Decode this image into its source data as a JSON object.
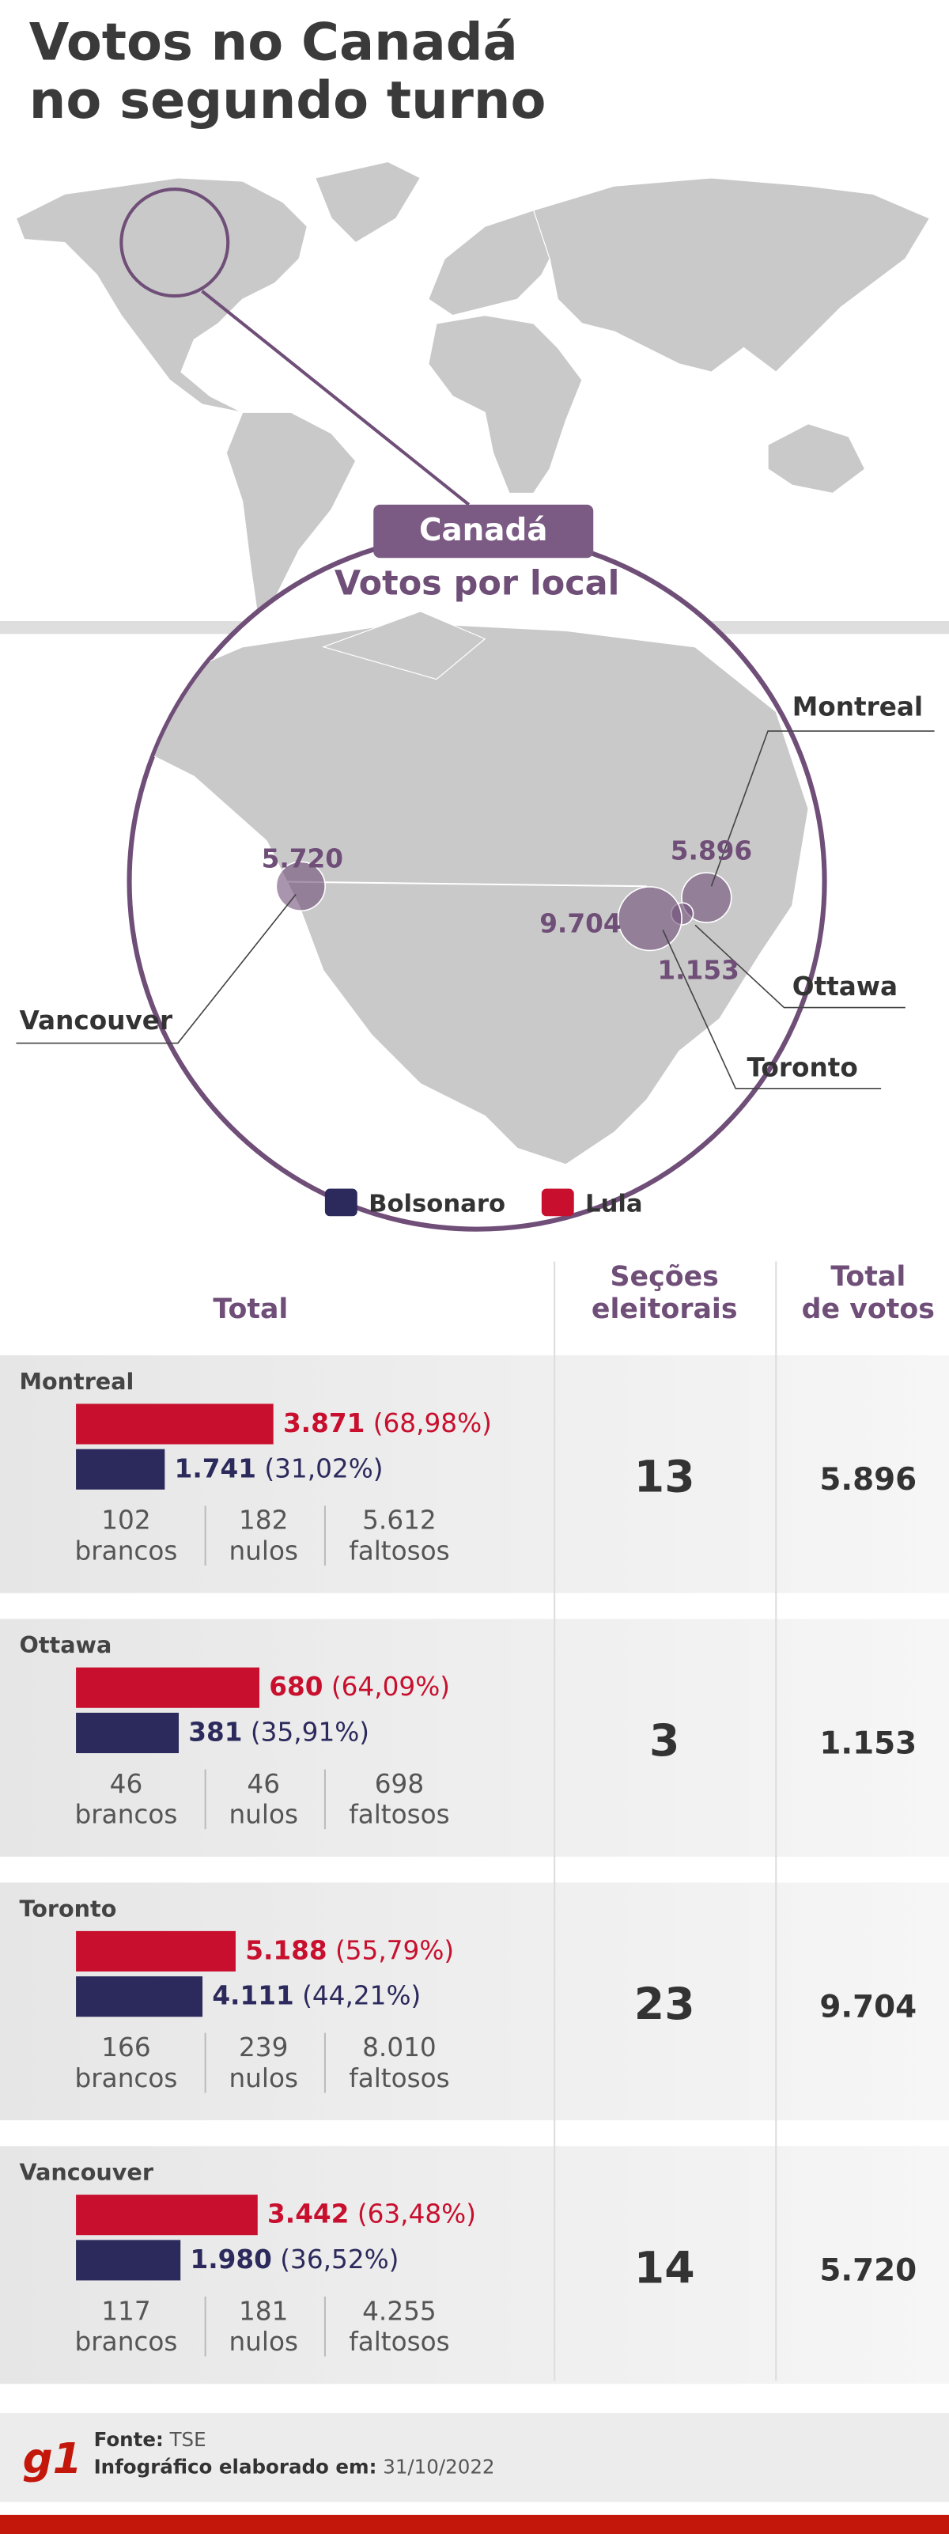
{
  "header": {
    "title_lines": [
      "Votos no Canadá",
      "no segundo turno"
    ]
  },
  "map": {
    "box_title": "Canadá",
    "subtitle": "Votos por local"
  },
  "legend": [
    {
      "name": "Bolsonaro",
      "color": "#2c2a5c"
    },
    {
      "name": "Lula",
      "color": "#c8102e"
    }
  ],
  "table_header": {
    "total": "Total",
    "sections": [
      "Seções",
      "eleitorais"
    ],
    "total_votes": [
      "Total",
      "de votos"
    ]
  },
  "cities": [
    {
      "name": "Montreal",
      "lula": {
        "votes": "3.871",
        "pct": 68.98,
        "pct_label": "(68,98%)"
      },
      "bolsonaro": {
        "votes": "1.741",
        "pct": 31.02,
        "pct_label": "(31,02%)"
      },
      "stats": [
        {
          "value": "102",
          "label": "brancos"
        },
        {
          "value": "182",
          "label": "nulos"
        },
        {
          "value": "5.612",
          "label": "faltosos"
        }
      ],
      "sections": "13",
      "total_label": "5.896",
      "total_votes": 5896
    },
    {
      "name": "Ottawa",
      "lula": {
        "votes": "680",
        "pct": 64.09,
        "pct_label": "(64,09%)"
      },
      "bolsonaro": {
        "votes": "381",
        "pct": 35.91,
        "pct_label": "(35,91%)"
      },
      "stats": [
        {
          "value": "46",
          "label": "brancos"
        },
        {
          "value": "46",
          "label": "nulos"
        },
        {
          "value": "698",
          "label": "faltosos"
        }
      ],
      "sections": "3",
      "total_label": "1.153",
      "total_votes": 1153
    },
    {
      "name": "Toronto",
      "lula": {
        "votes": "5.188",
        "pct": 55.79,
        "pct_label": "(55,79%)"
      },
      "bolsonaro": {
        "votes": "4.111",
        "pct": 44.21,
        "pct_label": "(44,21%)"
      },
      "stats": [
        {
          "value": "166",
          "label": "brancos"
        },
        {
          "value": "239",
          "label": "nulos"
        },
        {
          "value": "8.010",
          "label": "faltosos"
        }
      ],
      "sections": "23",
      "total_label": "9.704",
      "total_votes": 9704
    },
    {
      "name": "Vancouver",
      "lula": {
        "votes": "3.442",
        "pct": 63.48,
        "pct_label": "(63,48%)"
      },
      "bolsonaro": {
        "votes": "1.980",
        "pct": 36.52,
        "pct_label": "(36,52%)"
      },
      "stats": [
        {
          "value": "117",
          "label": "brancos"
        },
        {
          "value": "181",
          "label": "nulos"
        },
        {
          "value": "4.255",
          "label": "faltosos"
        }
      ],
      "sections": "14",
      "total_label": "5.720",
      "total_votes": 5720
    }
  ],
  "footer": {
    "logo": "g1",
    "source_label": "Fonte:",
    "source": "TSE",
    "date_label": "Infográfico elaborado em:",
    "date": "31/10/2022"
  }
}
